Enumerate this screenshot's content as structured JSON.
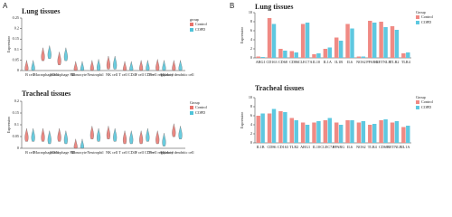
{
  "panel_labels": [
    "A",
    "B"
  ],
  "chart_data": [
    {
      "type": "violin",
      "title": "Lung tissues",
      "y_label": "Expression",
      "legend_title": "group",
      "categories": [
        "B cell",
        "Macrophage M1",
        "Macrophage M2",
        "Monocyte",
        "Neutrophil",
        "NK cell",
        "T cell CD4+",
        "T cell CD8+",
        "T cell regulatory",
        "Myeloid dendritic cell"
      ],
      "series": [
        {
          "name": "Control",
          "color": "#e8736c",
          "values": [
            0.01,
            0.07,
            0.05,
            0.005,
            0.01,
            0.03,
            0.005,
            0.01,
            0.015,
            0.01
          ]
        },
        {
          "name": "COPD",
          "color": "#4fc3d9",
          "values": [
            0.01,
            0.08,
            0.07,
            0.005,
            0.015,
            0.03,
            0.005,
            0.01,
            0.01,
            0.01
          ]
        }
      ],
      "ylim": [
        0,
        0.25
      ],
      "yticks": [
        0,
        0.05,
        0.1,
        0.15,
        0.2,
        0.25
      ]
    },
    {
      "type": "violin",
      "title": "Tracheal tissues",
      "y_label": "Expression",
      "legend_title": "Group",
      "categories": [
        "B cell",
        "Macrophage M1",
        "Macrophage M2",
        "Monocyte",
        "Neutrophil",
        "NK cell",
        "T cell CD4+",
        "T cell CD8+",
        "T cell regulatory",
        "Myeloid dendritic cell"
      ],
      "series": [
        {
          "name": "Control",
          "color": "#e8736c",
          "values": [
            0.05,
            0.05,
            0.05,
            0.005,
            0.06,
            0.06,
            0.04,
            0.04,
            0.04,
            0.07
          ]
        },
        {
          "name": "COPD",
          "color": "#4fc3d9",
          "values": [
            0.05,
            0.04,
            0.04,
            0.005,
            0.05,
            0.05,
            0.04,
            0.05,
            0.03,
            0.06
          ]
        }
      ],
      "ylim": [
        0,
        0.2
      ],
      "yticks": [
        0,
        0.05,
        0.1,
        0.15,
        0.2
      ]
    },
    {
      "type": "bar",
      "title": "Lung tissues",
      "y_label": "Expression",
      "legend_title": "Group",
      "categories": [
        "ARG1",
        "CD163",
        "CD68",
        "CD86",
        "CLEC7A",
        "IL10",
        "IL1A",
        "IL1B",
        "IL6",
        "NOS2",
        "PPARG",
        "RETNLB",
        "TLR2",
        "TLR4"
      ],
      "series": [
        {
          "name": "Control",
          "color": "#f08a84",
          "values": [
            0.3,
            8.8,
            2,
            1.5,
            7.5,
            0.8,
            2,
            4.5,
            7.5,
            0.3,
            8.2,
            8,
            7,
            1
          ]
        },
        {
          "name": "COPD",
          "color": "#5ec8e0",
          "values": [
            0.2,
            7.5,
            1.6,
            1.2,
            7.8,
            1,
            2.3,
            3.8,
            6.5,
            0.3,
            7.8,
            6.8,
            6.2,
            1.2
          ]
        }
      ],
      "ylim": [
        0,
        10
      ],
      "yticks": [
        0,
        2,
        4,
        6,
        8,
        10
      ]
    },
    {
      "type": "bar",
      "title": "Tracheal tissues",
      "y_label": "Expression",
      "legend_title": "Group",
      "categories": [
        "IL1B",
        "CD86",
        "CD163",
        "TLR2",
        "ARG1",
        "IL10",
        "CLEC7A",
        "PPARG",
        "IL6",
        "NOS2",
        "TLR4",
        "CD68",
        "RETNLB",
        "IL1A"
      ],
      "series": [
        {
          "name": "Control",
          "color": "#f08a84",
          "values": [
            6,
            6.5,
            7,
            5.5,
            4.5,
            4.5,
            5,
            4.5,
            5,
            4.5,
            4,
            5,
            4.5,
            3.5
          ]
        },
        {
          "name": "COPD",
          "color": "#5ec8e0",
          "values": [
            6.5,
            7.5,
            6.8,
            5,
            4,
            4.8,
            5.5,
            4,
            5,
            4.8,
            4.2,
            5.2,
            4.8,
            3.8
          ]
        }
      ],
      "ylim": [
        0,
        10
      ],
      "yticks": [
        0,
        2,
        4,
        6,
        8,
        10
      ]
    }
  ]
}
